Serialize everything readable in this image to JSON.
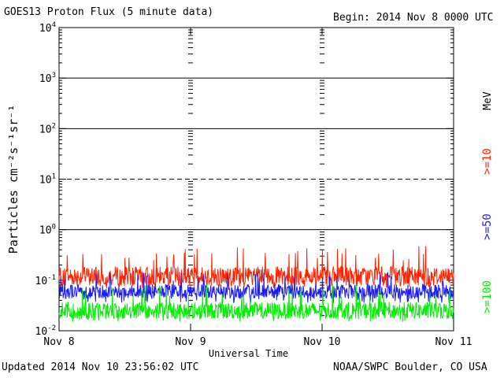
{
  "header": {
    "title": "GOES13 Proton Flux (5 minute data)",
    "begin": "Begin: 2014 Nov 8 0000 UTC"
  },
  "footer": {
    "updated": "Updated 2014 Nov 10 23:56:02 UTC",
    "credit": "NOAA/SWPC Boulder, CO USA"
  },
  "colors": {
    "ge10": "#ff2200",
    "ge50": "#1a1aff",
    "ge100": "#00ee00"
  },
  "chart_data": {
    "type": "line",
    "title": "GOES13 Proton Flux (5 minute data)",
    "xlabel": "Universal Time",
    "ylabel": "Particles cm⁻²s⁻¹sr⁻¹",
    "y_scale": "log",
    "ylim": [
      0.01,
      10000
    ],
    "y_ticks": [
      {
        "value": 10000,
        "base": "10",
        "exp": "4"
      },
      {
        "value": 1000,
        "base": "10",
        "exp": "3"
      },
      {
        "value": 100,
        "base": "10",
        "exp": "2"
      },
      {
        "value": 10,
        "base": "10",
        "exp": "1"
      },
      {
        "value": 1,
        "base": "10",
        "exp": "0"
      },
      {
        "value": 0.1,
        "base": "10",
        "exp": "-1"
      },
      {
        "value": 0.01,
        "base": "10",
        "exp": "-2"
      }
    ],
    "x_ticks": [
      "Nov 8",
      "Nov 9",
      "Nov 10",
      "Nov 11"
    ],
    "xlim": [
      "2014-11-08",
      "2014-11-11"
    ],
    "unit_label": "MeV",
    "threshold_lines": [
      {
        "value": 1000,
        "style": "solid"
      },
      {
        "value": 100,
        "style": "solid"
      },
      {
        "value": 10,
        "style": "dashed"
      },
      {
        "value": 1,
        "style": "solid"
      }
    ],
    "series": [
      {
        "name": ">=10",
        "color": "#ff2200",
        "typical": 0.12,
        "min": 0.07,
        "max": 0.5
      },
      {
        "name": ">=50",
        "color": "#1a1aff",
        "typical": 0.06,
        "min": 0.035,
        "max": 0.15
      },
      {
        "name": ">=100",
        "color": "#00ee00",
        "typical": 0.025,
        "min": 0.015,
        "max": 0.085
      }
    ]
  }
}
